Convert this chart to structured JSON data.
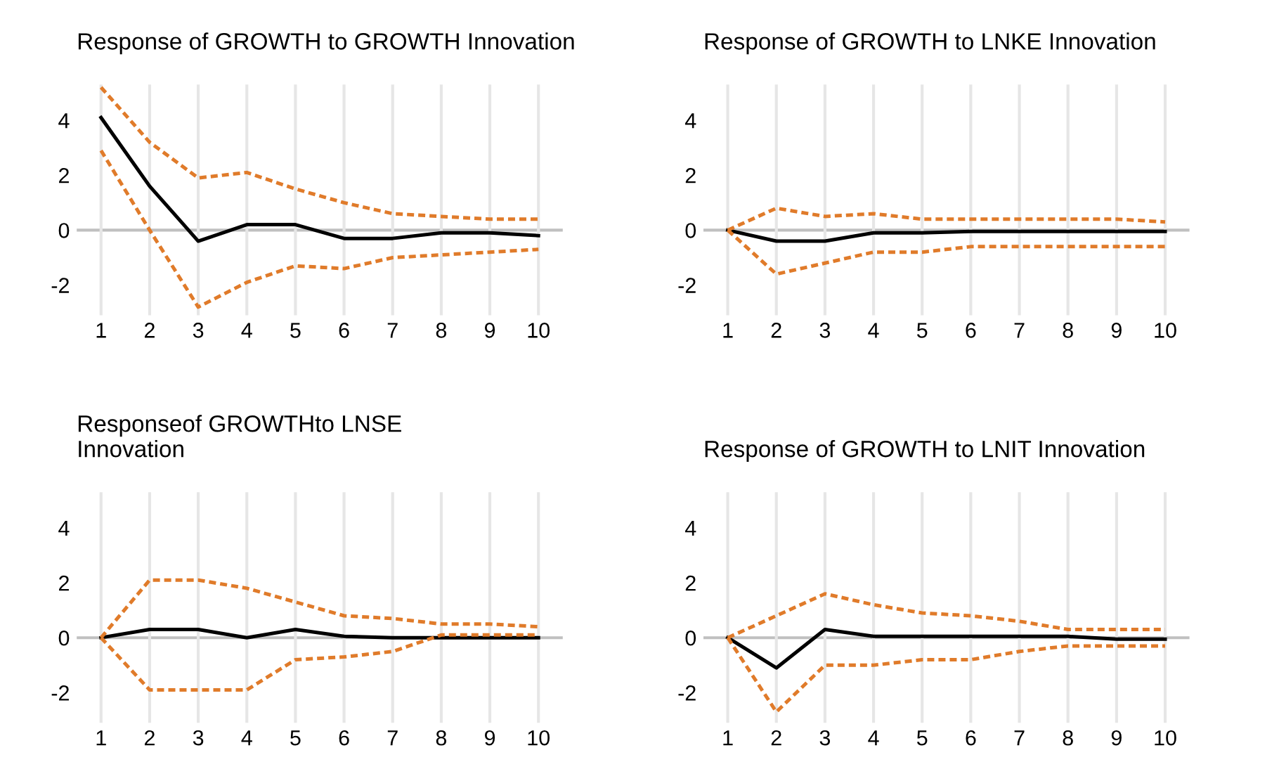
{
  "chart_data": [
    {
      "type": "line",
      "title": "Response of GROWTH to GROWTH Innovation",
      "categories": [
        "1",
        "2",
        "3",
        "4",
        "5",
        "6",
        "7",
        "8",
        "9",
        "10"
      ],
      "ylim": [
        -3.1,
        5.3
      ],
      "yticks": [
        -2,
        0,
        2,
        4
      ],
      "grid": "x",
      "ref_lines": [
        {
          "axis": "y",
          "value": 0,
          "color": "#c0c0c0"
        }
      ],
      "series": [
        {
          "color": "#000000",
          "line_style": "solid",
          "values": [
            4.1,
            1.6,
            -0.4,
            0.2,
            0.2,
            -0.3,
            -0.3,
            -0.1,
            -0.1,
            -0.2
          ]
        },
        {
          "color": "#e07b2a",
          "line_style": "dashed",
          "values": [
            5.2,
            3.2,
            1.9,
            2.1,
            1.5,
            1.0,
            0.6,
            0.5,
            0.4,
            0.4
          ]
        },
        {
          "color": "#e07b2a",
          "line_style": "dashed",
          "values": [
            2.9,
            0.0,
            -2.8,
            -1.9,
            -1.3,
            -1.4,
            -1.0,
            -0.9,
            -0.8,
            -0.7
          ]
        }
      ]
    },
    {
      "type": "line",
      "title": "Response of GROWTH to LNKE Innovation",
      "categories": [
        "1",
        "2",
        "3",
        "4",
        "5",
        "6",
        "7",
        "8",
        "9",
        "10"
      ],
      "ylim": [
        -3.1,
        5.3
      ],
      "yticks": [
        -2,
        0,
        2,
        4
      ],
      "grid": "x",
      "ref_lines": [
        {
          "axis": "y",
          "value": 0,
          "color": "#c0c0c0"
        }
      ],
      "series": [
        {
          "color": "#000000",
          "line_style": "solid",
          "values": [
            0.0,
            -0.4,
            -0.4,
            -0.1,
            -0.1,
            -0.05,
            -0.05,
            -0.05,
            -0.05,
            -0.05
          ]
        },
        {
          "color": "#e07b2a",
          "line_style": "dashed",
          "values": [
            0.0,
            0.8,
            0.5,
            0.6,
            0.4,
            0.4,
            0.4,
            0.4,
            0.4,
            0.3
          ]
        },
        {
          "color": "#e07b2a",
          "line_style": "dashed",
          "values": [
            0.0,
            -1.6,
            -1.2,
            -0.8,
            -0.8,
            -0.6,
            -0.6,
            -0.6,
            -0.6,
            -0.6
          ]
        }
      ]
    },
    {
      "type": "line",
      "title": "Responseof GROWTHto LNSE\nInnovation",
      "categories": [
        "1",
        "2",
        "3",
        "4",
        "5",
        "6",
        "7",
        "8",
        "9",
        "10"
      ],
      "ylim": [
        -3.1,
        5.3
      ],
      "yticks": [
        -2,
        0,
        2,
        4
      ],
      "grid": "x",
      "ref_lines": [
        {
          "axis": "y",
          "value": 0,
          "color": "#c0c0c0"
        }
      ],
      "series": [
        {
          "color": "#000000",
          "line_style": "solid",
          "values": [
            0.0,
            0.3,
            0.3,
            0.0,
            0.3,
            0.05,
            0.0,
            0.0,
            0.0,
            0.0
          ]
        },
        {
          "color": "#e07b2a",
          "line_style": "dashed",
          "values": [
            0.0,
            2.1,
            2.1,
            1.8,
            1.3,
            0.8,
            0.7,
            0.5,
            0.5,
            0.4
          ]
        },
        {
          "color": "#e07b2a",
          "line_style": "dashed",
          "values": [
            0.0,
            -1.9,
            -1.9,
            -1.9,
            -0.8,
            -0.7,
            -0.5,
            0.1,
            0.1,
            0.1
          ]
        }
      ]
    },
    {
      "type": "line",
      "title": "Response of GROWTH to LNIT Innovation",
      "categories": [
        "1",
        "2",
        "3",
        "4",
        "5",
        "6",
        "7",
        "8",
        "9",
        "10"
      ],
      "ylim": [
        -3.1,
        5.3
      ],
      "yticks": [
        -2,
        0,
        2,
        4
      ],
      "grid": "x",
      "ref_lines": [
        {
          "axis": "y",
          "value": 0,
          "color": "#c0c0c0"
        }
      ],
      "series": [
        {
          "color": "#000000",
          "line_style": "solid",
          "values": [
            0.0,
            -1.1,
            0.3,
            0.05,
            0.05,
            0.05,
            0.05,
            0.05,
            -0.05,
            -0.05
          ]
        },
        {
          "color": "#e07b2a",
          "line_style": "dashed",
          "values": [
            0.0,
            0.8,
            1.6,
            1.2,
            0.9,
            0.8,
            0.6,
            0.3,
            0.3,
            0.3
          ]
        },
        {
          "color": "#e07b2a",
          "line_style": "dashed",
          "values": [
            0.0,
            -2.7,
            -1.0,
            -1.0,
            -0.8,
            -0.8,
            -0.5,
            -0.3,
            -0.3,
            -0.3
          ]
        }
      ]
    }
  ]
}
